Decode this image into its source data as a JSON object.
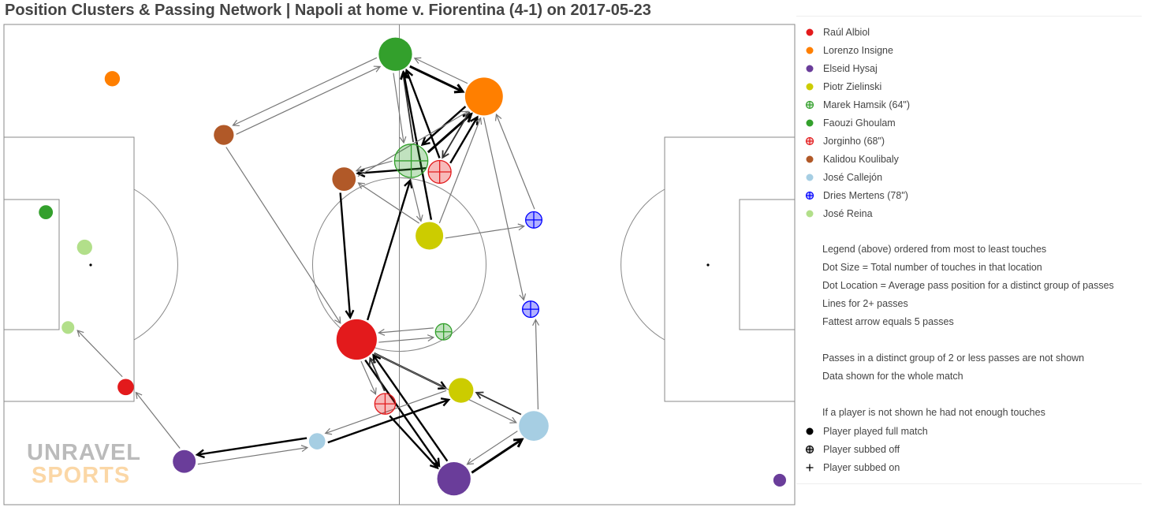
{
  "chart_data": {
    "type": "scatter",
    "title": "Position Clusters & Passing Network | Napoli at home v. Fiorentina (4-1) on 2017-05-23",
    "players": [
      {
        "name": "Raúl Albiol",
        "color": "#e31a1c",
        "status": "full"
      },
      {
        "name": "Lorenzo Insigne",
        "color": "#ff7f00",
        "status": "full"
      },
      {
        "name": "Elseid Hysaj",
        "color": "#6a3d9a",
        "status": "full"
      },
      {
        "name": "Piotr Zielinski",
        "color": "#cccc00",
        "status": "full"
      },
      {
        "name": "Marek Hamsik (64\")",
        "color": "#33a02c",
        "status": "subbed_off"
      },
      {
        "name": "Faouzi Ghoulam",
        "color": "#33a02c",
        "status": "full"
      },
      {
        "name": "Jorginho (68\")",
        "color": "#e31a1c",
        "status": "subbed_off"
      },
      {
        "name": "Kalidou Koulibaly",
        "color": "#b15928",
        "status": "full"
      },
      {
        "name": "José Callejón",
        "color": "#a6cee3",
        "status": "full"
      },
      {
        "name": "Dries Mertens (78\")",
        "color": "#0000ff",
        "status": "subbed_off"
      },
      {
        "name": "José Reina",
        "color": "#b2df8a",
        "status": "full"
      }
    ],
    "clusters": [
      {
        "id": "ghoulam1",
        "player": "Faouzi Ghoulam",
        "x": 49.5,
        "y": 93.8,
        "touches": 34
      },
      {
        "id": "ghoulam2",
        "player": "Faouzi Ghoulam",
        "x": 5.3,
        "y": 60.9,
        "touches": 4
      },
      {
        "id": "insigne1",
        "player": "Lorenzo Insigne",
        "x": 60.7,
        "y": 85.0,
        "touches": 45
      },
      {
        "id": "insigne2",
        "player": "Lorenzo Insigne",
        "x": 13.7,
        "y": 88.7,
        "touches": 5
      },
      {
        "id": "koulibaly1",
        "player": "Kalidou Koulibaly",
        "x": 27.8,
        "y": 77.0,
        "touches": 10
      },
      {
        "id": "koulibaly2",
        "player": "Kalidou Koulibaly",
        "x": 43.0,
        "y": 67.8,
        "touches": 15
      },
      {
        "id": "hamsik1",
        "player": "Marek Hamsik (64\")",
        "x": 51.5,
        "y": 71.6,
        "touches": 34
      },
      {
        "id": "hamsik2",
        "player": "Marek Hamsik (64\")",
        "x": 55.6,
        "y": 36.0,
        "touches": 6
      },
      {
        "id": "jorginho1",
        "player": "Jorginho (68\")",
        "x": 55.1,
        "y": 69.3,
        "touches": 14
      },
      {
        "id": "jorginho2",
        "player": "Jorginho (68\")",
        "x": 48.2,
        "y": 21.0,
        "touches": 11
      },
      {
        "id": "zielinski1",
        "player": "Piotr Zielinski",
        "x": 53.8,
        "y": 56.0,
        "touches": 22
      },
      {
        "id": "zielinski2",
        "player": "Piotr Zielinski",
        "x": 57.8,
        "y": 23.8,
        "touches": 17
      },
      {
        "id": "mertens1",
        "player": "Dries Mertens (78\")",
        "x": 67.0,
        "y": 59.3,
        "touches": 6
      },
      {
        "id": "mertens2",
        "player": "Dries Mertens (78\")",
        "x": 66.6,
        "y": 40.7,
        "touches": 6
      },
      {
        "id": "reina1",
        "player": "José Reina",
        "x": 10.2,
        "y": 53.6,
        "touches": 5
      },
      {
        "id": "reina2",
        "player": "José Reina",
        "x": 8.1,
        "y": 36.9,
        "touches": 3
      },
      {
        "id": "albiol1",
        "player": "Raúl Albiol",
        "x": 44.6,
        "y": 34.4,
        "touches": 52
      },
      {
        "id": "albiol2",
        "player": "Raúl Albiol",
        "x": 15.4,
        "y": 24.5,
        "touches": 6
      },
      {
        "id": "callejon1",
        "player": "José Callejón",
        "x": 67.0,
        "y": 16.4,
        "touches": 26
      },
      {
        "id": "callejon2",
        "player": "José Callejón",
        "x": 39.6,
        "y": 13.2,
        "touches": 6
      },
      {
        "id": "hysaj1",
        "player": "Elseid Hysaj",
        "x": 56.9,
        "y": 5.4,
        "touches": 34
      },
      {
        "id": "hysaj2",
        "player": "Elseid Hysaj",
        "x": 22.8,
        "y": 9.0,
        "touches": 14
      },
      {
        "id": "hysaj3",
        "player": "Elseid Hysaj",
        "x": 98.1,
        "y": 5.1,
        "touches": 3
      }
    ],
    "passes": [
      {
        "from": "hamsik1",
        "to": "insigne1",
        "count": 5
      },
      {
        "from": "insigne1",
        "to": "hamsik1",
        "count": 4
      },
      {
        "from": "ghoulam1",
        "to": "insigne1",
        "count": 5
      },
      {
        "from": "insigne1",
        "to": "ghoulam1",
        "count": 2
      },
      {
        "from": "ghoulam1",
        "to": "koulibaly1",
        "count": 2
      },
      {
        "from": "koulibaly1",
        "to": "ghoulam1",
        "count": 2
      },
      {
        "from": "hamsik1",
        "to": "ghoulam1",
        "count": 3
      },
      {
        "from": "ghoulam1",
        "to": "hamsik1",
        "count": 2
      },
      {
        "from": "jorginho1",
        "to": "insigne1",
        "count": 4
      },
      {
        "from": "jorginho1",
        "to": "ghoulam1",
        "count": 4
      },
      {
        "from": "insigne1",
        "to": "jorginho1",
        "count": 3
      },
      {
        "from": "jorginho1",
        "to": "koulibaly2",
        "count": 4
      },
      {
        "from": "hamsik1",
        "to": "koulibaly2",
        "count": 2
      },
      {
        "from": "koulibaly2",
        "to": "albiol1",
        "count": 4
      },
      {
        "from": "albiol1",
        "to": "hamsik1",
        "count": 4
      },
      {
        "from": "zielinski1",
        "to": "ghoulam1",
        "count": 4
      },
      {
        "from": "zielinski1",
        "to": "insigne1",
        "count": 2
      },
      {
        "from": "zielinski1",
        "to": "mertens1",
        "count": 2
      },
      {
        "from": "zielinski1",
        "to": "koulibaly2",
        "count": 2
      },
      {
        "from": "hamsik1",
        "to": "zielinski1",
        "count": 2
      },
      {
        "from": "koulibaly2",
        "to": "insigne1",
        "count": 2
      },
      {
        "from": "mertens1",
        "to": "insigne1",
        "count": 2
      },
      {
        "from": "insigne1",
        "to": "mertens2",
        "count": 2
      },
      {
        "from": "koulibaly1",
        "to": "albiol1",
        "count": 2
      },
      {
        "from": "callejon1",
        "to": "mertens2",
        "count": 2
      },
      {
        "from": "albiol1",
        "to": "hamsik2",
        "count": 2
      },
      {
        "from": "hamsik2",
        "to": "albiol1",
        "count": 2
      },
      {
        "from": "albiol1",
        "to": "jorginho2",
        "count": 2
      },
      {
        "from": "albiol1",
        "to": "zielinski2",
        "count": 4
      },
      {
        "from": "albiol1",
        "to": "hysaj1",
        "count": 4
      },
      {
        "from": "hysaj1",
        "to": "albiol1",
        "count": 4
      },
      {
        "from": "jorginho2",
        "to": "albiol1",
        "count": 3
      },
      {
        "from": "callejon1",
        "to": "zielinski2",
        "count": 3
      },
      {
        "from": "hysaj1",
        "to": "callejon1",
        "count": 5
      },
      {
        "from": "callejon1",
        "to": "hysaj1",
        "count": 2
      },
      {
        "from": "jorginho2",
        "to": "hysaj1",
        "count": 4
      },
      {
        "from": "hysaj2",
        "to": "callejon2",
        "count": 2
      },
      {
        "from": "callejon2",
        "to": "hysaj2",
        "count": 4
      },
      {
        "from": "callejon2",
        "to": "zielinski2",
        "count": 4
      },
      {
        "from": "zielinski2",
        "to": "callejon2",
        "count": 2
      },
      {
        "from": "hysaj2",
        "to": "albiol2",
        "count": 2
      },
      {
        "from": "albiol2",
        "to": "reina2",
        "count": 2
      },
      {
        "from": "albiol1",
        "to": "callejon1",
        "count": 2
      }
    ]
  },
  "legend": {
    "players": [
      {
        "label": "Raúl Albiol",
        "color": "#e31a1c",
        "symbol": "dot"
      },
      {
        "label": "Lorenzo Insigne",
        "color": "#ff7f00",
        "symbol": "dot"
      },
      {
        "label": "Elseid Hysaj",
        "color": "#6a3d9a",
        "symbol": "dot"
      },
      {
        "label": "Piotr Zielinski",
        "color": "#cccc00",
        "symbol": "dot"
      },
      {
        "label": "Marek Hamsik (64\")",
        "color": "#33a02c",
        "symbol": "crossed"
      },
      {
        "label": "Faouzi Ghoulam",
        "color": "#33a02c",
        "symbol": "dot"
      },
      {
        "label": "Jorginho (68\")",
        "color": "#e31a1c",
        "symbol": "crossed"
      },
      {
        "label": "Kalidou Koulibaly",
        "color": "#b15928",
        "symbol": "dot"
      },
      {
        "label": "José Callejón",
        "color": "#a6cee3",
        "symbol": "dot"
      },
      {
        "label": "Dries Mertens (78\")",
        "color": "#0000ff",
        "symbol": "crossed"
      },
      {
        "label": "José Reina",
        "color": "#b2df8a",
        "symbol": "dot"
      }
    ],
    "notes": [
      "Legend (above) ordered from most to least touches",
      "Dot Size = Total number of touches in that location",
      "Dot Location = Average pass position for a distinct group of passes",
      "Lines for 2+ passes",
      "Fattest arrow equals 5 passes",
      "",
      "Passes in a distinct group of 2 or less passes are not shown",
      "Data shown for the whole match",
      "",
      "If a player is not shown he had not enough touches"
    ],
    "keys": [
      {
        "label": "Player played full match",
        "symbol": "dot"
      },
      {
        "label": "Player subbed off",
        "symbol": "crossed"
      },
      {
        "label": "Player subbed on",
        "symbol": "plus"
      }
    ]
  },
  "watermark": {
    "line1": "UNRAVEL",
    "line2": "SPORTS"
  }
}
